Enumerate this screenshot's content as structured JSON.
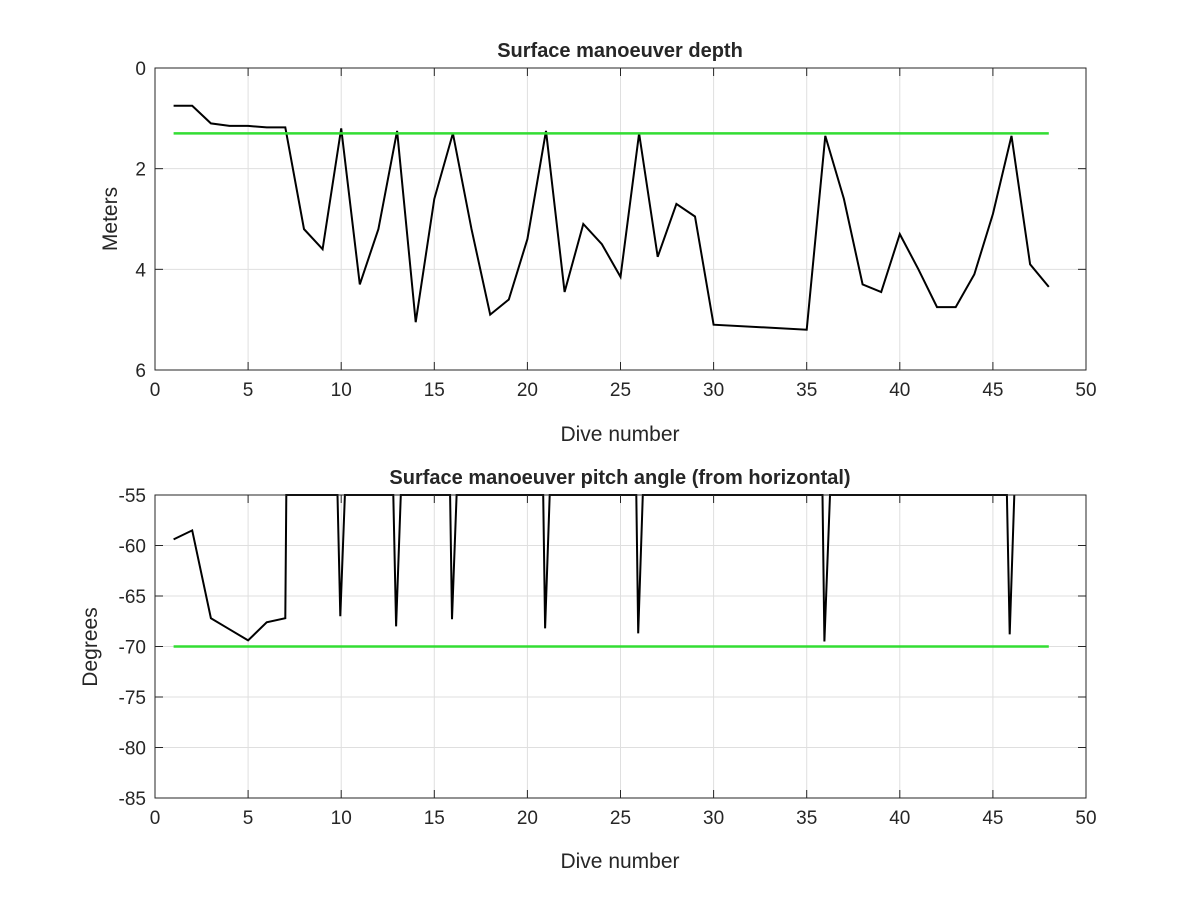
{
  "colors": {
    "data_line": "#000000",
    "threshold_line": "#33dd33",
    "grid": "#dfdfdf",
    "axes": "#262626"
  },
  "chart_data": [
    {
      "type": "line",
      "title": "Surface manoeuver depth",
      "xlabel": "Dive number",
      "ylabel": "Meters",
      "xlim": [
        0,
        50
      ],
      "ylim": [
        0,
        6
      ],
      "y_reversed": true,
      "xticks": [
        "0",
        "5",
        "10",
        "15",
        "20",
        "25",
        "30",
        "35",
        "40",
        "45",
        "50"
      ],
      "yticks": [
        "0",
        "2",
        "4",
        "6"
      ],
      "grid": true,
      "series": [
        {
          "color": "#000000",
          "points": [
            [
              1,
              0.75
            ],
            [
              2,
              0.75
            ],
            [
              3,
              1.1
            ],
            [
              4,
              1.15
            ],
            [
              5,
              1.15
            ],
            [
              6,
              1.18
            ],
            [
              7,
              1.18
            ],
            [
              8,
              3.2
            ],
            [
              9,
              3.6
            ],
            [
              10,
              1.2
            ],
            [
              11,
              4.3
            ],
            [
              12,
              3.2
            ],
            [
              13,
              1.25
            ],
            [
              14,
              5.05
            ],
            [
              15,
              2.6
            ],
            [
              16,
              1.3
            ],
            [
              17,
              3.2
            ],
            [
              18,
              4.9
            ],
            [
              19,
              4.6
            ],
            [
              20,
              3.4
            ],
            [
              21,
              1.25
            ],
            [
              22,
              4.45
            ],
            [
              23,
              3.1
            ],
            [
              24,
              3.5
            ],
            [
              25,
              4.15
            ],
            [
              26,
              1.3
            ],
            [
              27,
              3.75
            ],
            [
              28,
              2.7
            ],
            [
              29,
              2.95
            ],
            [
              30,
              5.1
            ],
            [
              35,
              5.2
            ],
            [
              36,
              1.35
            ],
            [
              37,
              2.6
            ],
            [
              38,
              4.3
            ],
            [
              39,
              4.45
            ],
            [
              40,
              3.3
            ],
            [
              41,
              4.0
            ],
            [
              42,
              4.75
            ],
            [
              43,
              4.75
            ],
            [
              44,
              4.1
            ],
            [
              45,
              2.9
            ],
            [
              46,
              1.35
            ],
            [
              47,
              3.9
            ],
            [
              48,
              4.35
            ]
          ]
        },
        {
          "color": "#33dd33",
          "points": [
            [
              1,
              1.3
            ],
            [
              48,
              1.3
            ]
          ]
        }
      ]
    },
    {
      "type": "line",
      "title": "Surface manoeuver pitch angle (from horizontal)",
      "xlabel": "Dive number",
      "ylabel": "Degrees",
      "xlim": [
        0,
        50
      ],
      "ylim": [
        -85,
        -55
      ],
      "y_reversed": false,
      "xticks": [
        "0",
        "5",
        "10",
        "15",
        "20",
        "25",
        "30",
        "35",
        "40",
        "45",
        "50"
      ],
      "yticks": [
        "-55",
        "-60",
        "-65",
        "-70",
        "-75",
        "-80",
        "-85"
      ],
      "grid": true,
      "series": [
        {
          "color": "#000000",
          "points": [
            [
              1,
              -59.4
            ],
            [
              2,
              -58.5
            ],
            [
              3,
              -67.2
            ],
            [
              4,
              -68.3
            ],
            [
              5,
              -69.4
            ],
            [
              6,
              -67.6
            ],
            [
              7,
              -67.2
            ],
            [
              7.05,
              -55
            ],
            [
              9.8,
              -55
            ],
            [
              9.95,
              -67
            ],
            [
              10.2,
              -55
            ],
            [
              12.8,
              -55
            ],
            [
              12.95,
              -68
            ],
            [
              13.2,
              -55
            ],
            [
              15.85,
              -55
            ],
            [
              15.95,
              -67.3
            ],
            [
              16.2,
              -55
            ],
            [
              20.85,
              -55
            ],
            [
              20.95,
              -68.2
            ],
            [
              21.2,
              -55
            ],
            [
              25.85,
              -55
            ],
            [
              25.95,
              -68.7
            ],
            [
              26.2,
              -55
            ],
            [
              35.85,
              -55
            ],
            [
              35.95,
              -69.5
            ],
            [
              36.25,
              -55
            ],
            [
              45.75,
              -55
            ],
            [
              45.9,
              -68.8
            ],
            [
              46.15,
              -55
            ]
          ]
        },
        {
          "color": "#33dd33",
          "points": [
            [
              1,
              -70
            ],
            [
              48,
              -70
            ]
          ]
        }
      ]
    }
  ]
}
